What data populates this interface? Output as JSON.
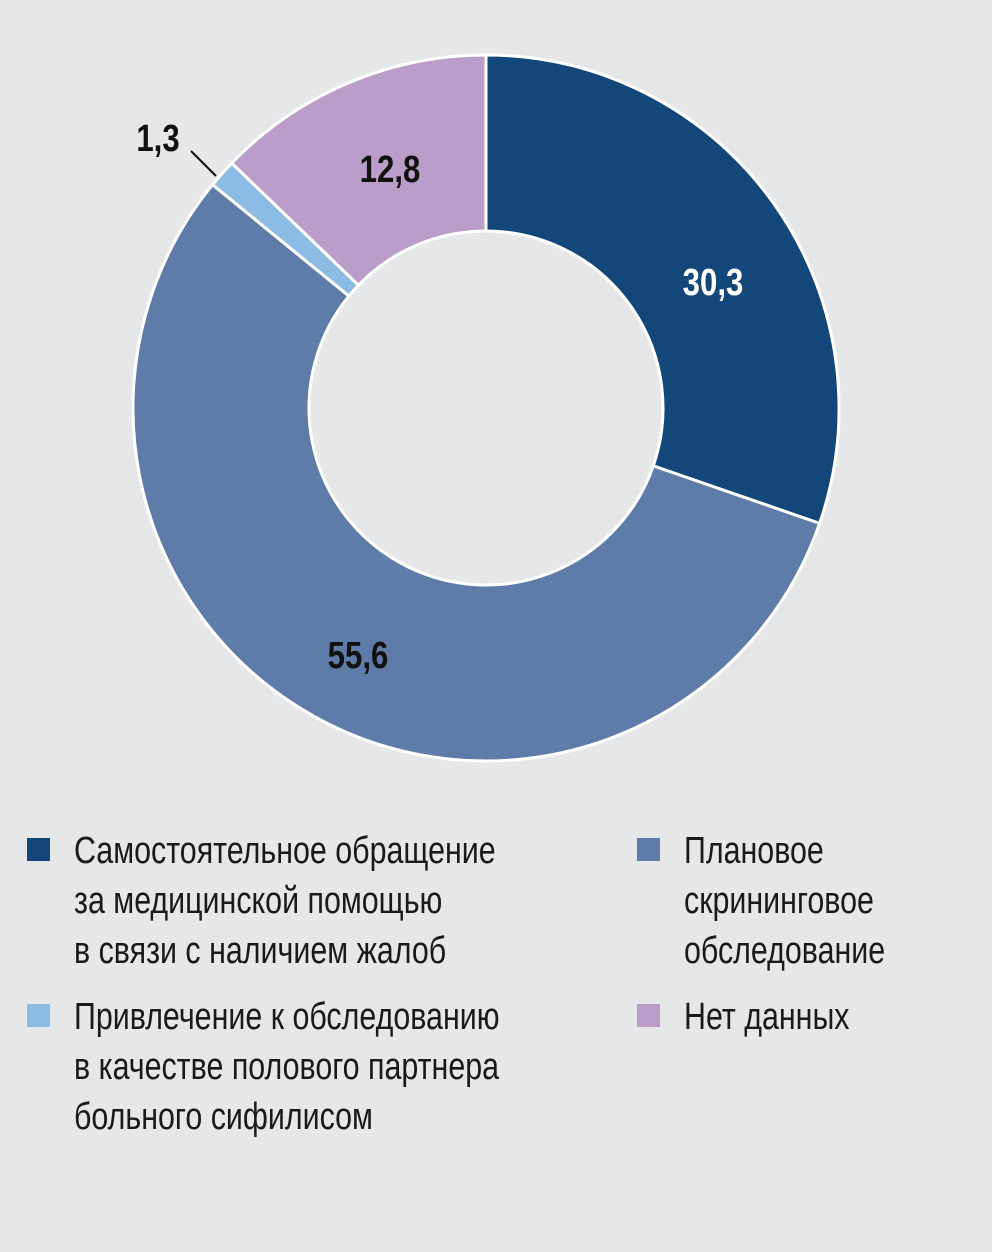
{
  "chart_data": {
    "type": "pie",
    "donut": true,
    "start": "top",
    "direction": "clockwise",
    "slices": [
      {
        "label": "Самостоятельное обращение за медицинской помощью в связи с наличием жалоб",
        "value": 30.3,
        "display": "30,3",
        "color": "#13477a",
        "label_color": "#ffffff"
      },
      {
        "label": "Плановое скрининговое обследование",
        "value": 55.6,
        "display": "55,6",
        "color": "#5f7ba8",
        "label_color": "#111111"
      },
      {
        "label": "Привлечение к обследованию в качестве полового партнера больного сифилисом",
        "value": 1.3,
        "display": "1,3",
        "color": "#8cbbe3",
        "label_color": "#111111"
      },
      {
        "label": "Нет данных",
        "value": 12.8,
        "display": "12,8",
        "color": "#bb9dc9",
        "label_color": "#111111"
      }
    ],
    "legend": [
      {
        "text": "Самостоятельное обращение\nза медицинской помощью\nв связи с наличием жалоб",
        "color": "#13477a"
      },
      {
        "text": "Плановое\nскрининговое\nобследование",
        "color": "#5f7ba8"
      },
      {
        "text": "Привлечение к обследованию\nв качестве полового партнера\nбольного сифилисом",
        "color": "#8cbbe3"
      },
      {
        "text": "Нет данных",
        "color": "#bb9dc9"
      }
    ],
    "legend_placement": "bottom"
  }
}
